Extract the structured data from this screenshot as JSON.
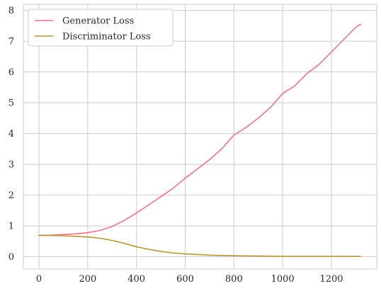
{
  "chart_data": {
    "type": "line",
    "title": "",
    "xlabel": "",
    "ylabel": "",
    "xlim": [
      -64,
      1386
    ],
    "ylim": [
      -0.4,
      8.2
    ],
    "x_ticks": [
      0,
      200,
      400,
      600,
      800,
      1000,
      1200
    ],
    "y_ticks": [
      0,
      1,
      2,
      3,
      4,
      5,
      6,
      7,
      8
    ],
    "grid": true,
    "legend_position": "top-left",
    "series": [
      {
        "name": "Generator Loss",
        "color": "#f0718a",
        "x": [
          0,
          50,
          100,
          150,
          200,
          250,
          300,
          350,
          400,
          450,
          500,
          550,
          600,
          650,
          700,
          750,
          800,
          850,
          900,
          950,
          1000,
          1050,
          1100,
          1150,
          1200,
          1250,
          1300,
          1320
        ],
        "y": [
          0.69,
          0.7,
          0.72,
          0.74,
          0.78,
          0.85,
          0.98,
          1.18,
          1.42,
          1.68,
          1.95,
          2.22,
          2.55,
          2.85,
          3.15,
          3.5,
          3.95,
          4.2,
          4.5,
          4.85,
          5.3,
          5.55,
          5.95,
          6.25,
          6.65,
          7.05,
          7.45,
          7.55
        ]
      },
      {
        "name": "Discriminator Loss",
        "color": "#b5953a",
        "x": [
          0,
          50,
          100,
          150,
          200,
          250,
          300,
          350,
          400,
          450,
          500,
          550,
          600,
          650,
          700,
          750,
          800,
          900,
          1000,
          1100,
          1200,
          1320
        ],
        "y": [
          0.69,
          0.69,
          0.68,
          0.66,
          0.64,
          0.6,
          0.53,
          0.43,
          0.32,
          0.24,
          0.17,
          0.12,
          0.09,
          0.07,
          0.05,
          0.04,
          0.03,
          0.02,
          0.01,
          0.01,
          0.01,
          0.01
        ]
      }
    ]
  }
}
